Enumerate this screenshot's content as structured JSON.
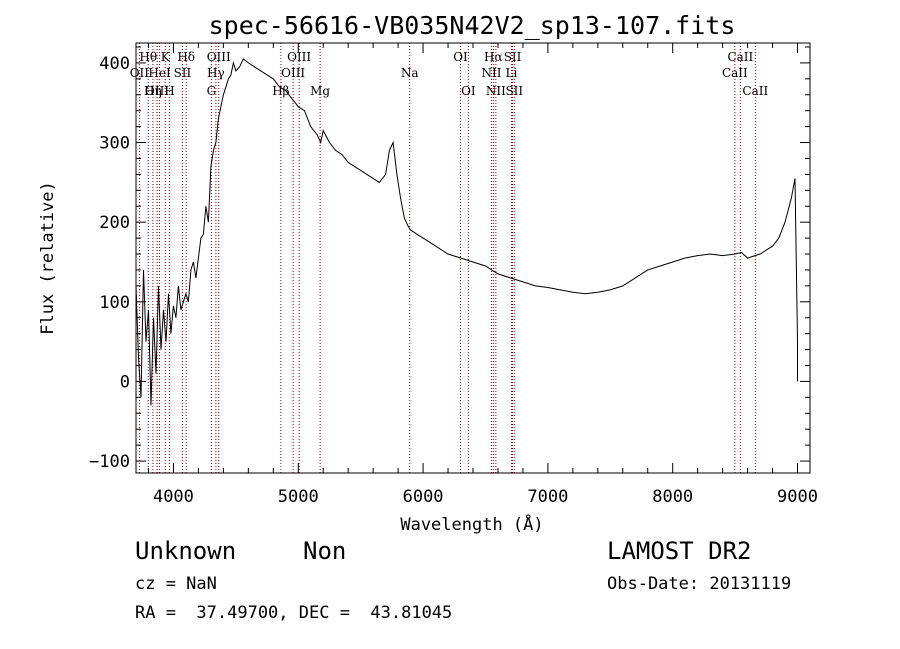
{
  "chart_data": {
    "type": "line",
    "title": "spec-56616-VB035N42V2_sp13-107.fits",
    "xlabel": "Wavelength (Å)",
    "ylabel": "Flux (relative)",
    "xlim": [
      3700,
      9100
    ],
    "ylim": [
      -115,
      425
    ],
    "xticks": [
      4000,
      5000,
      6000,
      7000,
      8000,
      9000
    ],
    "yticks": [
      -100,
      0,
      100,
      200,
      300,
      400
    ],
    "grid": false,
    "series": [
      {
        "x": [
          3700,
          3720,
          3740,
          3760,
          3780,
          3800,
          3820,
          3840,
          3860,
          3880,
          3900,
          3920,
          3940,
          3960,
          3980,
          4000,
          4020,
          4040,
          4060,
          4080,
          4100,
          4120,
          4140,
          4160,
          4180,
          4200,
          4220,
          4240,
          4260,
          4280,
          4300,
          4320,
          4340,
          4360,
          4380,
          4400,
          4420,
          4440,
          4460,
          4480,
          4500,
          4530,
          4560,
          4600,
          4650,
          4700,
          4750,
          4800,
          4850,
          4900,
          4950,
          5000,
          5050,
          5100,
          5150,
          5180,
          5200,
          5250,
          5300,
          5350,
          5400,
          5450,
          5500,
          5550,
          5600,
          5650,
          5700,
          5730,
          5760,
          5790,
          5820,
          5850,
          5880,
          5900,
          5950,
          6000,
          6100,
          6200,
          6300,
          6400,
          6500,
          6550,
          6600,
          6700,
          6800,
          6900,
          7000,
          7100,
          7200,
          7300,
          7400,
          7500,
          7600,
          7700,
          7800,
          7900,
          8000,
          8100,
          8200,
          8300,
          8400,
          8500,
          8550,
          8600,
          8700,
          8800,
          8850,
          8900,
          8950,
          8980,
          9000,
          9000
        ],
        "y": [
          120,
          30,
          -20,
          140,
          50,
          90,
          -30,
          80,
          10,
          120,
          40,
          90,
          50,
          110,
          60,
          95,
          80,
          120,
          90,
          100,
          110,
          100,
          140,
          150,
          130,
          155,
          180,
          185,
          220,
          200,
          270,
          290,
          300,
          330,
          345,
          360,
          370,
          380,
          385,
          400,
          390,
          395,
          405,
          400,
          395,
          390,
          385,
          380,
          370,
          365,
          355,
          345,
          340,
          320,
          310,
          300,
          315,
          300,
          290,
          285,
          275,
          270,
          265,
          260,
          255,
          250,
          260,
          290,
          300,
          260,
          230,
          205,
          195,
          190,
          185,
          180,
          170,
          160,
          155,
          150,
          145,
          140,
          135,
          130,
          125,
          120,
          118,
          115,
          112,
          110,
          112,
          115,
          120,
          130,
          140,
          145,
          150,
          155,
          158,
          160,
          158,
          160,
          162,
          155,
          160,
          170,
          180,
          200,
          230,
          255,
          50,
          0
        ]
      }
    ],
    "lines": [
      {
        "name": "Hθ",
        "x": 3798,
        "row": 0
      },
      {
        "name": "K",
        "x": 3934,
        "row": 0
      },
      {
        "name": "Hδ",
        "x": 4102,
        "row": 0
      },
      {
        "name": "OII",
        "x": 3727,
        "row": 1
      },
      {
        "name": "HeI",
        "x": 3889,
        "row": 1
      },
      {
        "name": "SII",
        "x": 4072,
        "row": 1
      },
      {
        "name": "OIII",
        "x": 3869,
        "row": 2
      },
      {
        "name": "Hη",
        "x": 3835,
        "row": 2
      },
      {
        "name": "H",
        "x": 3968,
        "row": 2
      },
      {
        "name": "OIII",
        "x": 4363,
        "row": 0
      },
      {
        "name": "Hγ",
        "x": 4340,
        "row": 1
      },
      {
        "name": "G",
        "x": 4304,
        "row": 2
      },
      {
        "name": "OIII",
        "x": 5007,
        "row": 0
      },
      {
        "name": "OIII",
        "x": 4959,
        "row": 1
      },
      {
        "name": "Hβ",
        "x": 4861,
        "row": 2
      },
      {
        "name": "Mg",
        "x": 5175,
        "row": 2
      },
      {
        "name": "Na",
        "x": 5893,
        "row": 1
      },
      {
        "name": "OI",
        "x": 6300,
        "row": 0
      },
      {
        "name": "OI",
        "x": 6363,
        "row": 2
      },
      {
        "name": "Hα",
        "x": 6563,
        "row": 0
      },
      {
        "name": "NII",
        "x": 6548,
        "row": 1
      },
      {
        "name": "NII",
        "x": 6583,
        "row": 2
      },
      {
        "name": "SII",
        "x": 6717,
        "row": 0
      },
      {
        "name": "Li",
        "x": 6708,
        "row": 1
      },
      {
        "name": "SII",
        "x": 6731,
        "row": 2
      },
      {
        "name": "CaII",
        "x": 8542,
        "row": 0
      },
      {
        "name": "CaII",
        "x": 8498,
        "row": 1
      },
      {
        "name": "CaII",
        "x": 8662,
        "row": 2
      }
    ],
    "line_color": "#8b0000"
  },
  "info": {
    "class": "Unknown",
    "subclass": "Non",
    "cz": "cz = NaN",
    "radec": "RA =  37.49700, DEC =  43.81045",
    "survey": "LAMOST DR2",
    "obsdate": "Obs-Date: 20131119"
  }
}
